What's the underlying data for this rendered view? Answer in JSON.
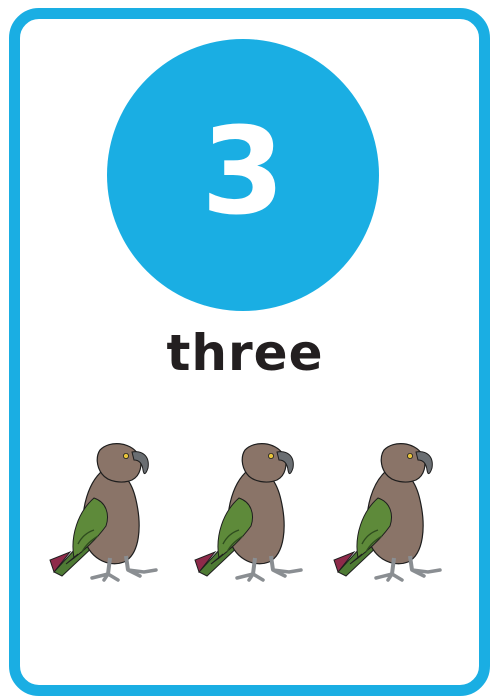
{
  "card": {
    "numeral": "3",
    "word": "three",
    "accent_color": "#1aaee3"
  },
  "illustration": {
    "icon": "kea-parrot-icon",
    "count": 3
  }
}
